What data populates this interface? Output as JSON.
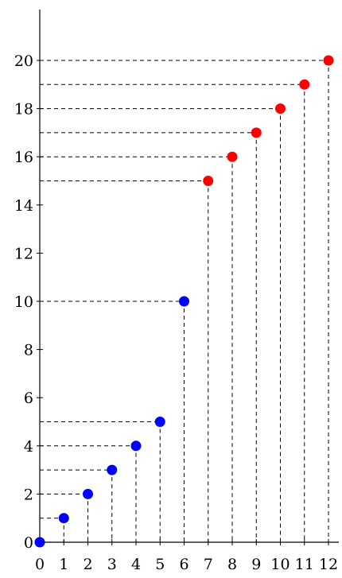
{
  "chart_data": {
    "type": "scatter",
    "title": "",
    "xlabel": "",
    "ylabel": "",
    "xlim": [
      0,
      12
    ],
    "ylim": [
      0,
      20
    ],
    "x_ticks": [
      "0",
      "1",
      "2",
      "3",
      "4",
      "5",
      "6",
      "7",
      "8",
      "9",
      "10",
      "11",
      "12"
    ],
    "y_ticks": [
      "0",
      "2",
      "4",
      "6",
      "8",
      "10",
      "12",
      "14",
      "16",
      "18",
      "20"
    ],
    "grid": false,
    "projection_lines": "dashed",
    "series": [
      {
        "color": "#0000ff",
        "points": [
          {
            "x": 0,
            "y": 0
          },
          {
            "x": 1,
            "y": 1
          },
          {
            "x": 2,
            "y": 2
          },
          {
            "x": 3,
            "y": 3
          },
          {
            "x": 4,
            "y": 4
          },
          {
            "x": 5,
            "y": 5
          },
          {
            "x": 6,
            "y": 10
          }
        ]
      },
      {
        "color": "#ff0000",
        "points": [
          {
            "x": 7,
            "y": 15
          },
          {
            "x": 8,
            "y": 16
          },
          {
            "x": 9,
            "y": 17
          },
          {
            "x": 10,
            "y": 18
          },
          {
            "x": 11,
            "y": 19
          },
          {
            "x": 12,
            "y": 20
          }
        ]
      }
    ]
  }
}
